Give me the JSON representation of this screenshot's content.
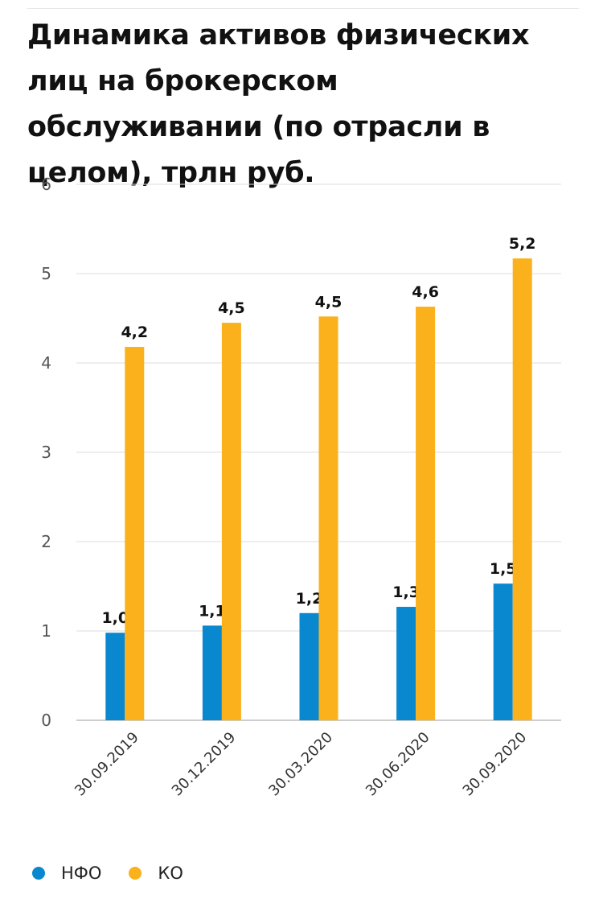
{
  "page": {
    "title": "Динамика активов физических лиц на брокерском обслуживании (по отрасли в целом), трлн руб."
  },
  "chart_data": {
    "type": "bar",
    "title": "Динамика активов физических лиц на брокерском обслуживании (по отрасли в целом), трлн руб.",
    "xlabel": "",
    "ylabel": "",
    "categories": [
      "30.09.2019",
      "30.12.2019",
      "30.03.2020",
      "30.06.2020",
      "30.09.2020"
    ],
    "series": [
      {
        "name": "НФО",
        "color": "#0a88cf",
        "values": [
          0.98,
          1.06,
          1.2,
          1.27,
          1.53
        ],
        "labels": [
          "1,0",
          "1,1",
          "1,2",
          "1,3",
          "1,5"
        ]
      },
      {
        "name": "КО",
        "color": "#fbb11c",
        "values": [
          4.18,
          4.45,
          4.52,
          4.63,
          5.17
        ],
        "labels": [
          "4,2",
          "4,5",
          "4,5",
          "4,6",
          "5,2"
        ]
      }
    ],
    "ylim": [
      0,
      6
    ],
    "yticks": [
      0,
      1,
      2,
      3,
      4,
      5,
      6
    ],
    "grid": true,
    "legend": "bottom-left"
  }
}
